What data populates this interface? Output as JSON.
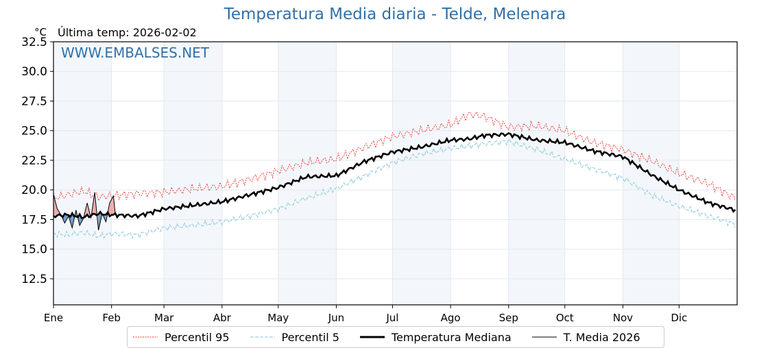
{
  "chart_data": {
    "type": "line",
    "title": "Temperatura Media diaria - Telde, Melenara",
    "unit_label": "°C",
    "subtitle": "Última temp: 2026-02-02",
    "watermark": "WWW.EMBALSES.NET",
    "ylim": [
      10.3,
      32.5
    ],
    "yticks": [
      "12.5",
      "15.0",
      "17.5",
      "20.0",
      "22.5",
      "25.0",
      "27.5",
      "30.0",
      "32.5"
    ],
    "ytick_values": [
      12.5,
      15.0,
      17.5,
      20.0,
      22.5,
      25.0,
      27.5,
      30.0,
      32.5
    ],
    "xlim_days": [
      0,
      365
    ],
    "months": [
      "Ene",
      "Feb",
      "Mar",
      "Abr",
      "May",
      "Jun",
      "Jul",
      "Ago",
      "Sep",
      "Oct",
      "Nov",
      "Dic"
    ],
    "month_start_days": [
      0,
      31,
      59,
      90,
      120,
      151,
      181,
      212,
      243,
      273,
      304,
      334
    ],
    "grid": true,
    "legend_position": "bottom",
    "legend": [
      "Percentil 95",
      "Percentil 5",
      "Temperatura Mediana",
      "T. Media 2026"
    ],
    "colors": {
      "p95": "#e8312a",
      "p5": "#9fd1e3",
      "median": "#000000",
      "current": "#000000",
      "band": "#f3f7fb",
      "above": "#e8a0a0",
      "below": "#5a8fbf",
      "title": "#3070a8"
    },
    "series": [
      {
        "name": "Percentil 95",
        "days": [
          0,
          8,
          16,
          24,
          31,
          45,
          59,
          75,
          90,
          105,
          120,
          135,
          151,
          166,
          181,
          196,
          212,
          222,
          230,
          243,
          258,
          273,
          288,
          304,
          320,
          334,
          350,
          364
        ],
        "values": [
          19.3,
          19.6,
          19.9,
          19.4,
          19.5,
          19.7,
          19.8,
          20.1,
          20.3,
          20.9,
          21.6,
          22.3,
          22.6,
          23.6,
          24.5,
          25.0,
          25.5,
          26.4,
          26.2,
          25.3,
          25.4,
          25.0,
          24.0,
          23.4,
          22.4,
          21.4,
          20.5,
          19.3
        ]
      },
      {
        "name": "Percentil 5",
        "days": [
          0,
          8,
          16,
          24,
          31,
          45,
          59,
          75,
          90,
          105,
          120,
          135,
          151,
          166,
          181,
          196,
          212,
          222,
          230,
          243,
          258,
          273,
          288,
          304,
          320,
          334,
          350,
          364
        ],
        "values": [
          16.3,
          16.2,
          16.4,
          16.1,
          16.3,
          16.2,
          16.8,
          17.0,
          17.3,
          17.8,
          18.4,
          19.3,
          20.1,
          21.2,
          22.3,
          23.0,
          23.5,
          23.7,
          23.9,
          24.1,
          23.4,
          22.6,
          21.8,
          21.0,
          19.5,
          18.6,
          17.8,
          17.1
        ]
      },
      {
        "name": "Temperatura Mediana",
        "days": [
          0,
          8,
          16,
          24,
          31,
          45,
          59,
          75,
          90,
          105,
          120,
          135,
          151,
          166,
          181,
          196,
          212,
          222,
          230,
          243,
          258,
          273,
          288,
          304,
          320,
          334,
          350,
          364
        ],
        "values": [
          17.8,
          17.9,
          17.7,
          18.0,
          17.9,
          17.8,
          18.4,
          18.7,
          19.0,
          19.6,
          20.2,
          21.1,
          21.2,
          22.4,
          23.2,
          23.6,
          24.2,
          24.3,
          24.6,
          24.7,
          24.2,
          24.0,
          23.3,
          22.8,
          21.2,
          20.0,
          18.9,
          18.3
        ]
      },
      {
        "name": "T. Media 2026",
        "days": [
          0,
          2,
          4,
          6,
          8,
          10,
          12,
          14,
          16,
          18,
          20,
          22,
          24,
          26,
          28,
          30,
          32,
          33
        ],
        "values": [
          19.6,
          18.4,
          17.9,
          17.2,
          17.8,
          16.8,
          18.3,
          17.0,
          17.6,
          18.9,
          17.6,
          19.8,
          16.6,
          18.0,
          17.3,
          18.9,
          19.5,
          18.0
        ]
      }
    ]
  }
}
